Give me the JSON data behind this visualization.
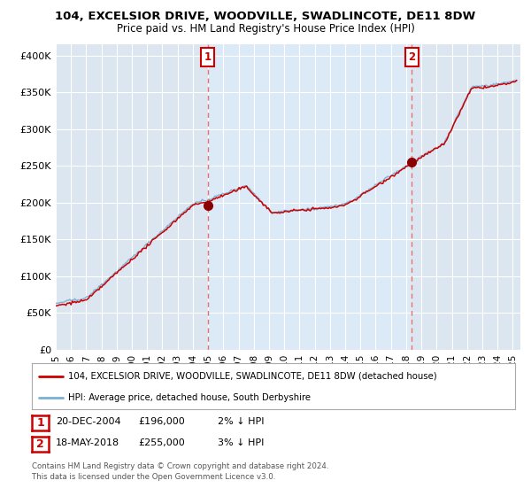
{
  "title1": "104, EXCELSIOR DRIVE, WOODVILLE, SWADLINCOTE, DE11 8DW",
  "title2": "Price paid vs. HM Land Registry's House Price Index (HPI)",
  "ylabel_ticks": [
    "£0",
    "£50K",
    "£100K",
    "£150K",
    "£200K",
    "£250K",
    "£300K",
    "£350K",
    "£400K"
  ],
  "ytick_vals": [
    0,
    50000,
    100000,
    150000,
    200000,
    250000,
    300000,
    350000,
    400000
  ],
  "ylim": [
    0,
    415000
  ],
  "xlim_start": 1995.0,
  "xlim_end": 2025.5,
  "bg_color": "#dce6f0",
  "span_color": "#ccddf0",
  "grid_color": "#ffffff",
  "line1_color": "#cc0000",
  "line2_color": "#7ab0d4",
  "marker_color": "#8b0000",
  "vline_color": "#e87070",
  "purchase1_x": 2004.97,
  "purchase1_y": 196000,
  "purchase1_label": "1",
  "purchase2_x": 2018.38,
  "purchase2_y": 255000,
  "purchase2_label": "2",
  "legend_line1": "104, EXCELSIOR DRIVE, WOODVILLE, SWADLINCOTE, DE11 8DW (detached house)",
  "legend_line2": "HPI: Average price, detached house, South Derbyshire",
  "table_row1": [
    "1",
    "20-DEC-2004",
    "£196,000",
    "2% ↓ HPI"
  ],
  "table_row2": [
    "2",
    "18-MAY-2018",
    "£255,000",
    "3% ↓ HPI"
  ],
  "footnote": "Contains HM Land Registry data © Crown copyright and database right 2024.\nThis data is licensed under the Open Government Licence v3.0.",
  "xtick_years": [
    1995,
    1996,
    1997,
    1998,
    1999,
    2000,
    2001,
    2002,
    2003,
    2004,
    2005,
    2006,
    2007,
    2008,
    2009,
    2010,
    2011,
    2012,
    2013,
    2014,
    2015,
    2016,
    2017,
    2018,
    2019,
    2020,
    2021,
    2022,
    2023,
    2024,
    2025
  ],
  "figsize": [
    6.0,
    5.6
  ],
  "dpi": 100
}
